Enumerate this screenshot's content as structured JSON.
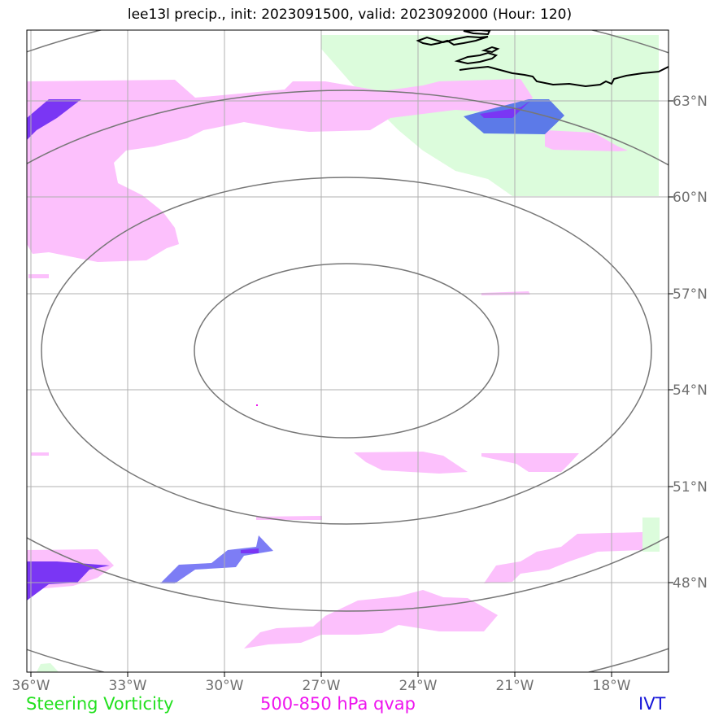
{
  "title": "lee13l precip., init: 2023091500, valid: 2023092000 (Hour: 120)",
  "lon_ticks": [
    "36°W",
    "33°W",
    "30°W",
    "27°W",
    "24°W",
    "21°W",
    "18°W"
  ],
  "lat_ticks": [
    "63°N",
    "60°N",
    "57°N",
    "54°N",
    "51°N",
    "48°N"
  ],
  "legend": {
    "steering_vorticity": "Steering Vorticity",
    "qvap": "500-850 hPa qvap",
    "ivt": "IVT"
  },
  "colors": {
    "steering_vorticity": "#22e01e",
    "qvap": "#ee14ee",
    "ivt": "#1414d8",
    "grid": "#b0b0b0",
    "range_rings": "#777777",
    "coastline": "#000000"
  }
}
